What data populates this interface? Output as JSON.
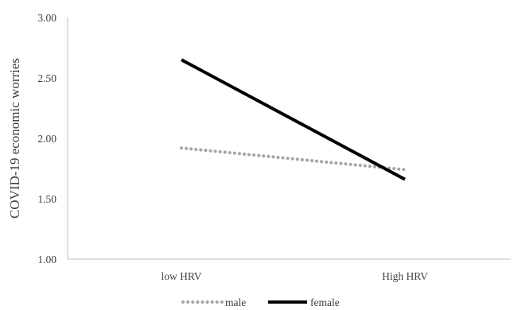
{
  "chart_data": {
    "type": "line",
    "title": "",
    "xlabel": "",
    "ylabel": "COVID-19 economic worries",
    "categories": [
      "low HRV",
      "High HRV"
    ],
    "ylim": [
      1.0,
      3.0
    ],
    "yticks": [
      "1.00",
      "1.50",
      "2.00",
      "2.50",
      "3.00"
    ],
    "grid": false,
    "legend_position": "bottom",
    "series": [
      {
        "name": "male",
        "values": [
          1.92,
          1.74
        ],
        "color": "#a6a6a6",
        "style": "dotted"
      },
      {
        "name": "female",
        "values": [
          2.65,
          1.66
        ],
        "color": "#000000",
        "style": "solid"
      }
    ]
  }
}
